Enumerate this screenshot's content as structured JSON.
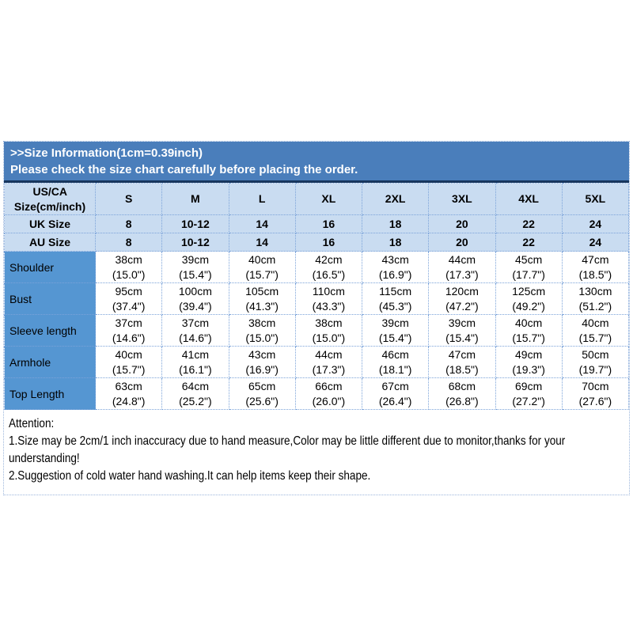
{
  "colors": {
    "banner_bg": "#4a7ebb",
    "banner_text": "#ffffff",
    "banner_underline": "#17365d",
    "header_cell_bg": "#c9dcf1",
    "row_label_bg": "#5596d2",
    "grid_line": "#7ba3d9",
    "text": "#000000",
    "page_bg": "#ffffff"
  },
  "banner": {
    "line1": ">>Size Information(1cm=0.39inch)",
    "line2": "Please check the size chart carefully before placing the order."
  },
  "size_chart": {
    "corner": {
      "line1": "US/CA",
      "line2": "Size(cm/inch)"
    },
    "sizes": [
      "S",
      "M",
      "L",
      "XL",
      "2XL",
      "3XL",
      "4XL",
      "5XL"
    ],
    "uk": {
      "label": "UK Size",
      "values": [
        "8",
        "10-12",
        "14",
        "16",
        "18",
        "20",
        "22",
        "24"
      ]
    },
    "au": {
      "label": "AU Size",
      "values": [
        "8",
        "10-12",
        "14",
        "16",
        "18",
        "20",
        "22",
        "24"
      ]
    },
    "rows": [
      {
        "label": "Shoulder",
        "cells": [
          {
            "cm": "38cm",
            "in": "(15.0\")"
          },
          {
            "cm": "39cm",
            "in": "(15.4\")"
          },
          {
            "cm": "40cm",
            "in": "(15.7\")"
          },
          {
            "cm": "42cm",
            "in": "(16.5\")"
          },
          {
            "cm": "43cm",
            "in": "(16.9\")"
          },
          {
            "cm": "44cm",
            "in": "(17.3\")"
          },
          {
            "cm": "45cm",
            "in": "(17.7\")"
          },
          {
            "cm": "47cm",
            "in": "(18.5\")"
          }
        ]
      },
      {
        "label": "Bust",
        "cells": [
          {
            "cm": "95cm",
            "in": "(37.4\")"
          },
          {
            "cm": "100cm",
            "in": "(39.4\")"
          },
          {
            "cm": "105cm",
            "in": "(41.3\")"
          },
          {
            "cm": "110cm",
            "in": "(43.3\")"
          },
          {
            "cm": "115cm",
            "in": "(45.3\")"
          },
          {
            "cm": "120cm",
            "in": "(47.2\")"
          },
          {
            "cm": "125cm",
            "in": "(49.2\")"
          },
          {
            "cm": "130cm",
            "in": "(51.2\")"
          }
        ]
      },
      {
        "label": "Sleeve length",
        "cells": [
          {
            "cm": "37cm",
            "in": "(14.6\")"
          },
          {
            "cm": "37cm",
            "in": "(14.6\")"
          },
          {
            "cm": "38cm",
            "in": "(15.0\")"
          },
          {
            "cm": "38cm",
            "in": "(15.0\")"
          },
          {
            "cm": "39cm",
            "in": "(15.4\")"
          },
          {
            "cm": "39cm",
            "in": "(15.4\")"
          },
          {
            "cm": "40cm",
            "in": "(15.7\")"
          },
          {
            "cm": "40cm",
            "in": "(15.7\")"
          }
        ]
      },
      {
        "label": "Armhole",
        "cells": [
          {
            "cm": "40cm",
            "in": "(15.7\")"
          },
          {
            "cm": "41cm",
            "in": "(16.1\")"
          },
          {
            "cm": "43cm",
            "in": "(16.9\")"
          },
          {
            "cm": "44cm",
            "in": "(17.3\")"
          },
          {
            "cm": "46cm",
            "in": "(18.1\")"
          },
          {
            "cm": "47cm",
            "in": "(18.5\")"
          },
          {
            "cm": "49cm",
            "in": "(19.3\")"
          },
          {
            "cm": "50cm",
            "in": "(19.7\")"
          }
        ]
      },
      {
        "label": "Top Length",
        "cells": [
          {
            "cm": "63cm",
            "in": "(24.8\")"
          },
          {
            "cm": "64cm",
            "in": "(25.2\")"
          },
          {
            "cm": "65cm",
            "in": "(25.6\")"
          },
          {
            "cm": "66cm",
            "in": "(26.0\")"
          },
          {
            "cm": "67cm",
            "in": "(26.4\")"
          },
          {
            "cm": "68cm",
            "in": "(26.8\")"
          },
          {
            "cm": "69cm",
            "in": "(27.2\")"
          },
          {
            "cm": "70cm",
            "in": "(27.6\")"
          }
        ]
      }
    ]
  },
  "attention": {
    "title": "Attention:",
    "line1": "1.Size may be 2cm/1 inch inaccuracy due to hand measure,Color may be little different due to monitor,thanks for your understanding!",
    "line2": "2.Suggestion of cold water hand washing.It can help items keep their shape."
  }
}
